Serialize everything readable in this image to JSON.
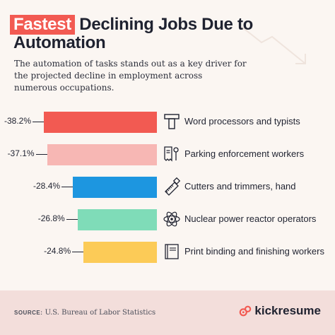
{
  "header": {
    "title_highlight": "Fastest",
    "title_rest": " Declining Jobs Due to Automation",
    "subtitle": "The automation of tasks stands out as a key driver for the projected decline in employment across numerous occupations."
  },
  "chart_data": {
    "type": "bar",
    "orientation": "horizontal",
    "categories": [
      "Word processors and typists",
      "Parking enforcement workers",
      "Cutters and trimmers, hand",
      "Nuclear power reactor operators",
      "Print binding and finishing workers"
    ],
    "values": [
      -38.2,
      -37.1,
      -28.4,
      -26.8,
      -24.8
    ],
    "value_labels": [
      "-38.2%",
      "-37.1%",
      "-28.4%",
      "-26.8%",
      "-24.8%"
    ],
    "unit": "%",
    "colors": [
      "#f25a52",
      "#f7b7b4",
      "#1d96e0",
      "#7fdcb8",
      "#fccb57"
    ],
    "icons": [
      "typography-t-icon",
      "parking-ticket-icon",
      "hand-saw-icon",
      "atom-icon",
      "book-icon"
    ]
  },
  "footer": {
    "source_label": "SOURCE:",
    "source_text": " U.S. Bureau of Labor Statistics",
    "brand": "kickresume"
  },
  "colors": {
    "background": "#fbf6f2",
    "footer": "#f3dedb",
    "accent": "#f25a52",
    "text": "#1f2230"
  }
}
